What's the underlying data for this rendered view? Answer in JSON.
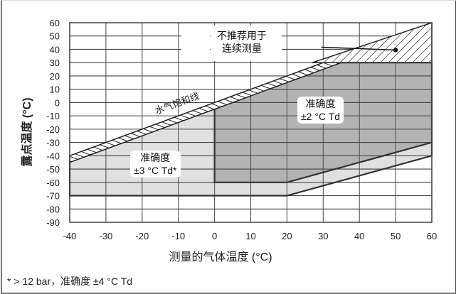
{
  "chart_data": {
    "type": "area",
    "title": "",
    "xlabel": "测量的气体温度 (°C)",
    "ylabel": "露点温度 (°C)",
    "xlim": [
      -40,
      60
    ],
    "ylim": [
      -90,
      60
    ],
    "x_ticks": [
      "-40",
      "-30",
      "-20",
      "-10",
      "0",
      "10",
      "20",
      "30",
      "40",
      "50",
      "60"
    ],
    "y_ticks": [
      "60",
      "50",
      "40",
      "30",
      "20",
      "10",
      "0",
      "-10",
      "-20",
      "-30",
      "-40",
      "-50",
      "-60",
      "-70",
      "-80",
      "-90"
    ],
    "grid": true,
    "regions": [
      {
        "name": "准确度 ±3 °C Td*",
        "fill": "#e0e0e0",
        "polygon": [
          [
            -40,
            -45
          ],
          [
            -40,
            -70
          ],
          [
            20,
            -70
          ],
          [
            60,
            -40
          ],
          [
            60,
            -30
          ],
          [
            20,
            -60
          ],
          [
            0,
            -60
          ],
          [
            0,
            -5
          ]
        ]
      },
      {
        "name": "准确度 ±2 °C Td",
        "fill": "#b3b3b3",
        "polygon": [
          [
            0,
            -5
          ],
          [
            0,
            -60
          ],
          [
            20,
            -60
          ],
          [
            60,
            -30
          ],
          [
            60,
            30
          ],
          [
            35,
            30
          ]
        ]
      },
      {
        "name": "不推荐用于连续测量",
        "fill": "hatched",
        "polygon": [
          [
            27,
            30
          ],
          [
            60,
            30
          ],
          [
            60,
            60
          ]
        ]
      }
    ],
    "lines": [
      {
        "name": "水气饱和线",
        "points": [
          [
            -40,
            -40
          ],
          [
            60,
            60
          ]
        ],
        "band_below": 5
      }
    ],
    "annotations": [
      {
        "text": "水气饱和线"
      },
      {
        "text": "不推荐用于\n连续测量",
        "arrow_to": [
          50,
          40
        ]
      },
      {
        "text": "准确度\n±2 °C Td"
      },
      {
        "text": "准确度\n±3 °C Td*"
      }
    ],
    "footnote": "* > 12 bar，准确度 ±4 °C Td"
  },
  "labels": {
    "ylabel": "露点温度 (°C)",
    "xlabel": "测量的气体温度 (°C)",
    "saturation": "水气饱和线",
    "not_recommended_1": "不推荐用于",
    "not_recommended_2": "连续测量",
    "acc2_1": "准确度",
    "acc2_2": "±2 °C Td",
    "acc3_1": "准确度",
    "acc3_2": "±3 °C Td*",
    "footnote": "* > 12 bar，准确度 ±4 °C Td"
  }
}
